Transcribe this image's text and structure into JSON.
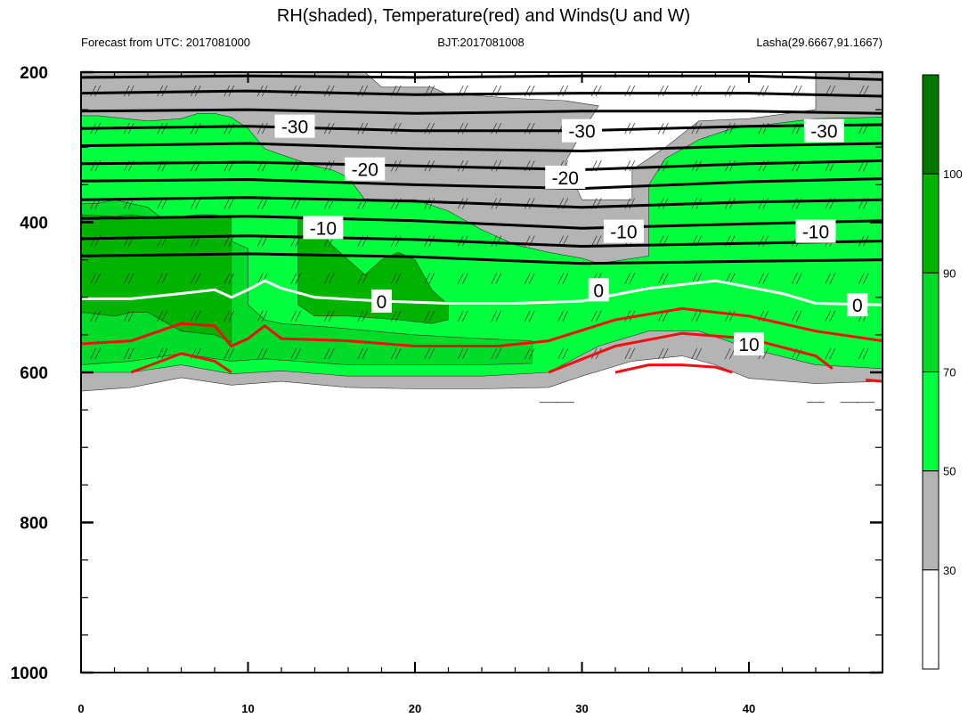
{
  "chart_data": {
    "type": "contour",
    "title": "RH(shaded), Temperature(red) and Winds(U and W)",
    "subtitle_left": "Forecast from UTC: 2017081000",
    "subtitle_center": "BJT:2017081008",
    "subtitle_right": "Lasha(29.6667,91.1667)",
    "xlim": [
      0,
      48
    ],
    "ylim": [
      200,
      1000
    ],
    "y_reversed": true,
    "x_ticks": [
      "0",
      "10",
      "20",
      "30",
      "40"
    ],
    "x_tick_values": [
      0,
      10,
      20,
      30,
      40
    ],
    "y_ticks": [
      "200",
      "400",
      "600",
      "800",
      "1000"
    ],
    "y_tick_values": [
      200,
      400,
      600,
      800,
      1000
    ],
    "colorbar": {
      "labels": [
        "30",
        "50",
        "70",
        "90",
        "100"
      ],
      "levels": [
        30,
        50,
        70,
        90,
        100
      ],
      "colors": [
        "#ffffff",
        "#b4b4b4",
        "#00ff3c",
        "#00dc28",
        "#00b400",
        "#007800"
      ]
    },
    "rh_regions": [
      {
        "level": "30-50",
        "color": "#b4b4b4",
        "points": [
          [
            0,
            625
          ],
          [
            3,
            620
          ],
          [
            6,
            607
          ],
          [
            9,
            617
          ],
          [
            12,
            612
          ],
          [
            16,
            620
          ],
          [
            20,
            622
          ],
          [
            24,
            622
          ],
          [
            28,
            620
          ],
          [
            30,
            605
          ],
          [
            33,
            585
          ],
          [
            36,
            578
          ],
          [
            38,
            590
          ],
          [
            40,
            608
          ],
          [
            44,
            615
          ],
          [
            48,
            612
          ],
          [
            48,
            200
          ],
          [
            44,
            200
          ],
          [
            44,
            250
          ],
          [
            40,
            262
          ],
          [
            37,
            265
          ],
          [
            35,
            300
          ],
          [
            33,
            330
          ],
          [
            33,
            370
          ],
          [
            30,
            370
          ],
          [
            29,
            320
          ],
          [
            30,
            280
          ],
          [
            31,
            245
          ],
          [
            29,
            238
          ],
          [
            26,
            235
          ],
          [
            23,
            230
          ],
          [
            22,
            230
          ],
          [
            21,
            220
          ],
          [
            18,
            220
          ],
          [
            17,
            200
          ],
          [
            0,
            200
          ]
        ]
      },
      {
        "level": "50-70",
        "color": "#00ff3c",
        "points": [
          [
            0,
            600
          ],
          [
            3,
            600
          ],
          [
            6,
            590
          ],
          [
            9,
            602
          ],
          [
            12,
            598
          ],
          [
            16,
            605
          ],
          [
            20,
            605
          ],
          [
            24,
            605
          ],
          [
            28,
            600
          ],
          [
            31,
            565
          ],
          [
            34,
            545
          ],
          [
            37,
            545
          ],
          [
            40,
            568
          ],
          [
            44,
            590
          ],
          [
            48,
            595
          ],
          [
            48,
            260
          ],
          [
            44,
            262
          ],
          [
            41,
            270
          ],
          [
            39,
            275
          ],
          [
            37,
            290
          ],
          [
            35,
            315
          ],
          [
            34,
            350
          ],
          [
            34,
            445
          ],
          [
            31,
            455
          ],
          [
            30,
            448
          ],
          [
            28,
            440
          ],
          [
            26,
            430
          ],
          [
            24,
            410
          ],
          [
            22,
            385
          ],
          [
            20,
            370
          ],
          [
            17,
            370
          ],
          [
            16,
            340
          ],
          [
            15,
            330
          ],
          [
            14,
            325
          ],
          [
            12,
            310
          ],
          [
            11,
            302
          ],
          [
            10,
            275
          ],
          [
            9,
            260
          ],
          [
            8,
            255
          ],
          [
            7,
            255
          ],
          [
            6,
            262
          ],
          [
            4,
            265
          ],
          [
            1,
            258
          ],
          [
            0,
            258
          ]
        ]
      },
      {
        "level": "70-90",
        "color": "#00dc28",
        "points": [
          [
            0,
            590
          ],
          [
            3,
            585
          ],
          [
            6,
            575
          ],
          [
            9,
            585
          ],
          [
            11,
            582
          ],
          [
            16,
            590
          ],
          [
            20,
            590
          ],
          [
            24,
            590
          ],
          [
            27,
            588
          ],
          [
            27,
            558
          ],
          [
            24,
            555
          ],
          [
            20,
            550
          ],
          [
            15,
            540
          ],
          [
            12,
            535
          ],
          [
            11,
            530
          ],
          [
            10,
            510
          ],
          [
            10,
            435
          ],
          [
            9,
            425
          ],
          [
            8,
            418
          ],
          [
            6,
            415
          ],
          [
            4,
            380
          ],
          [
            2,
            370
          ],
          [
            1,
            375
          ],
          [
            0,
            375
          ]
        ]
      },
      {
        "level": "90-100",
        "color": "#00b400",
        "points": [
          [
            0,
            520
          ],
          [
            2,
            525
          ],
          [
            3,
            520
          ],
          [
            4,
            520
          ],
          [
            6,
            545
          ],
          [
            8,
            550
          ],
          [
            9,
            560
          ],
          [
            9,
            500
          ],
          [
            9,
            395
          ],
          [
            8,
            390
          ],
          [
            7,
            390
          ],
          [
            5,
            395
          ],
          [
            3,
            390
          ],
          [
            2,
            392
          ],
          [
            0,
            390
          ]
        ]
      },
      {
        "level": "90-100",
        "color": "#00b400",
        "points": [
          [
            13,
            510
          ],
          [
            14,
            525
          ],
          [
            16,
            525
          ],
          [
            19,
            530
          ],
          [
            21,
            535
          ],
          [
            22,
            530
          ],
          [
            22,
            510
          ],
          [
            21,
            490
          ],
          [
            20,
            450
          ],
          [
            19,
            440
          ],
          [
            18,
            450
          ],
          [
            17,
            470
          ],
          [
            15,
            430
          ],
          [
            14,
            400
          ],
          [
            13,
            395
          ],
          [
            13,
            440
          ]
        ]
      }
    ],
    "black_isotherms": [
      [
        [
          0,
          207
        ],
        [
          10,
          205
        ],
        [
          20,
          207
        ],
        [
          30,
          205
        ],
        [
          40,
          205
        ],
        [
          48,
          210
        ]
      ],
      [
        [
          0,
          228
        ],
        [
          10,
          225
        ],
        [
          20,
          230
        ],
        [
          30,
          228
        ],
        [
          40,
          228
        ],
        [
          48,
          232
        ]
      ],
      [
        [
          0,
          252
        ],
        [
          10,
          250
        ],
        [
          20,
          255
        ],
        [
          30,
          252
        ],
        [
          40,
          252
        ],
        [
          48,
          255
        ]
      ],
      [
        [
          0,
          275
        ],
        [
          10,
          272
        ],
        [
          20,
          278
        ],
        [
          30,
          278
        ],
        [
          40,
          272
        ],
        [
          48,
          270
        ]
      ],
      [
        [
          0,
          298
        ],
        [
          10,
          295
        ],
        [
          20,
          302
        ],
        [
          30,
          305
        ],
        [
          40,
          298
        ],
        [
          48,
          295
        ]
      ],
      [
        [
          0,
          322
        ],
        [
          10,
          320
        ],
        [
          20,
          325
        ],
        [
          30,
          330
        ],
        [
          40,
          322
        ],
        [
          48,
          318
        ]
      ],
      [
        [
          0,
          345
        ],
        [
          10,
          343
        ],
        [
          20,
          350
        ],
        [
          30,
          355
        ],
        [
          40,
          346
        ],
        [
          48,
          342
        ]
      ],
      [
        [
          0,
          370
        ],
        [
          10,
          367
        ],
        [
          20,
          372
        ],
        [
          30,
          380
        ],
        [
          40,
          373
        ],
        [
          48,
          370
        ]
      ],
      [
        [
          0,
          395
        ],
        [
          10,
          392
        ],
        [
          20,
          398
        ],
        [
          30,
          408
        ],
        [
          40,
          402
        ],
        [
          48,
          398
        ]
      ],
      [
        [
          0,
          422
        ],
        [
          10,
          418
        ],
        [
          20,
          423
        ],
        [
          30,
          432
        ],
        [
          40,
          428
        ],
        [
          48,
          425
        ]
      ],
      [
        [
          0,
          445
        ],
        [
          10,
          442
        ],
        [
          20,
          446
        ],
        [
          30,
          455
        ],
        [
          40,
          452
        ],
        [
          48,
          450
        ]
      ]
    ],
    "zero_isotherm": [
      [
        0,
        502
      ],
      [
        3,
        502
      ],
      [
        6,
        495
      ],
      [
        8,
        490
      ],
      [
        9,
        500
      ],
      [
        10,
        490
      ],
      [
        11,
        478
      ],
      [
        12,
        488
      ],
      [
        14,
        500
      ],
      [
        18,
        505
      ],
      [
        22,
        508
      ],
      [
        26,
        508
      ],
      [
        30,
        505
      ],
      [
        34,
        488
      ],
      [
        38,
        478
      ],
      [
        42,
        495
      ],
      [
        44,
        508
      ],
      [
        48,
        510
      ]
    ],
    "red_isotherms": [
      [
        [
          0,
          562
        ],
        [
          3,
          558
        ],
        [
          6,
          535
        ],
        [
          8,
          538
        ],
        [
          9,
          565
        ],
        [
          10,
          555
        ],
        [
          11,
          538
        ],
        [
          12,
          555
        ],
        [
          16,
          558
        ],
        [
          20,
          565
        ],
        [
          25,
          565
        ],
        [
          28,
          558
        ],
        [
          32,
          530
        ],
        [
          36,
          515
        ],
        [
          40,
          525
        ],
        [
          44,
          545
        ],
        [
          48,
          558
        ]
      ],
      [
        [
          3,
          600
        ],
        [
          6,
          575
        ],
        [
          8,
          585
        ],
        [
          9,
          600
        ]
      ],
      [
        [
          28,
          600
        ],
        [
          32,
          565
        ],
        [
          36,
          548
        ],
        [
          40,
          555
        ],
        [
          44,
          578
        ],
        [
          45,
          595
        ]
      ],
      [
        [
          32,
          600
        ],
        [
          34,
          590
        ],
        [
          36,
          590
        ],
        [
          38,
          593
        ],
        [
          39,
          600
        ]
      ],
      [
        [
          47,
          610
        ],
        [
          48,
          612
        ]
      ]
    ],
    "contour_labels": [
      {
        "text": "-30",
        "x": 12.8,
        "y": 272
      },
      {
        "text": "-30",
        "x": 30,
        "y": 278
      },
      {
        "text": "-30",
        "x": 44.5,
        "y": 278
      },
      {
        "text": "-20",
        "x": 17,
        "y": 329
      },
      {
        "text": "-20",
        "x": 29,
        "y": 340
      },
      {
        "text": "-10",
        "x": 14.5,
        "y": 407
      },
      {
        "text": "-10",
        "x": 32.5,
        "y": 412
      },
      {
        "text": "-10",
        "x": 44,
        "y": 412
      },
      {
        "text": "0",
        "x": 18,
        "y": 505
      },
      {
        "text": "0",
        "x": 31,
        "y": 490
      },
      {
        "text": "0",
        "x": 46.5,
        "y": 510
      },
      {
        "text": "10",
        "x": 40,
        "y": 562
      }
    ]
  }
}
